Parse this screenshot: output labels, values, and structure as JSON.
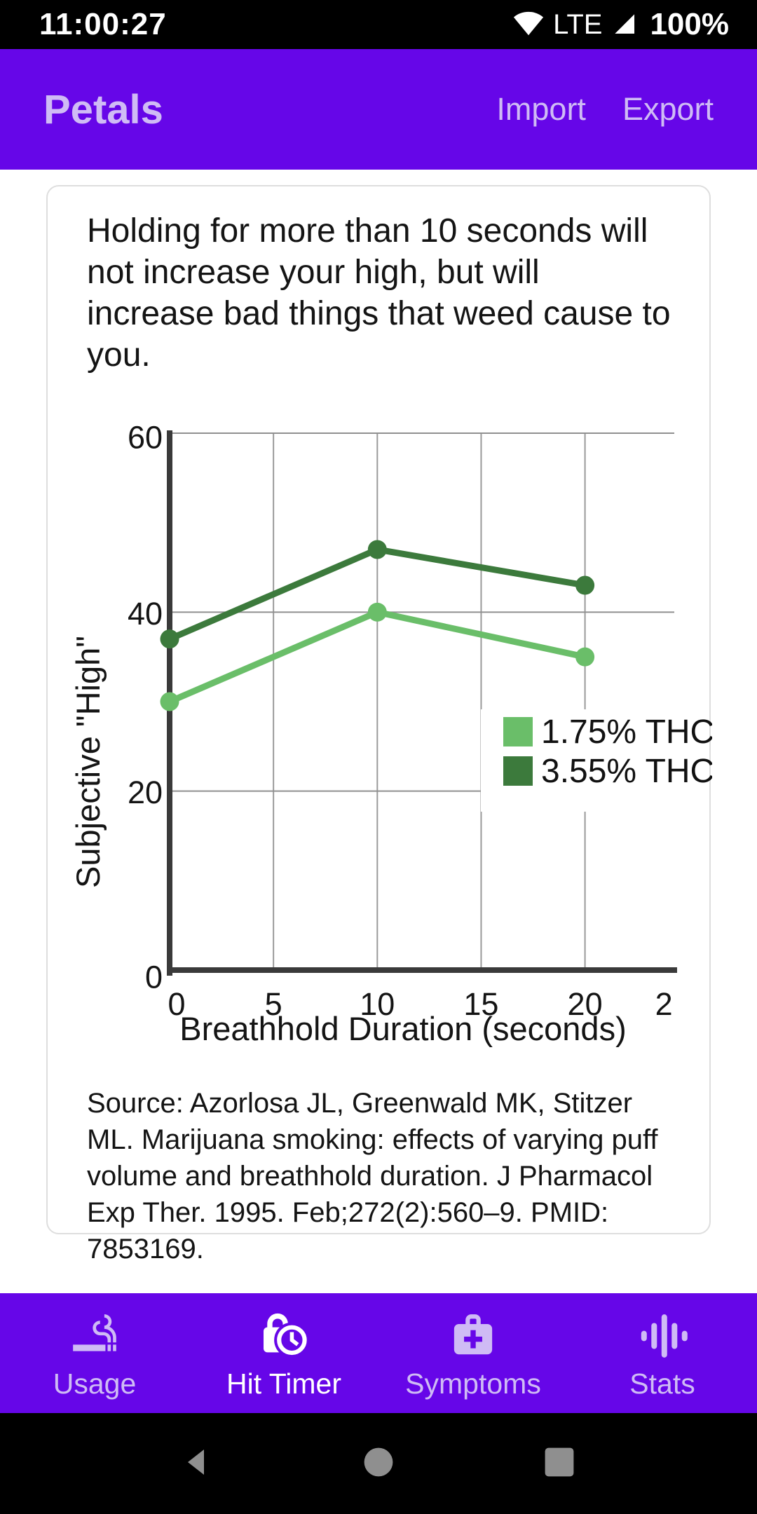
{
  "status_bar": {
    "time": "11:00:27",
    "network": "LTE",
    "battery": "100%"
  },
  "app_bar": {
    "title": "Petals",
    "import_label": "Import",
    "export_label": "Export"
  },
  "card": {
    "title": "Holding for more than 10 seconds will not increase your high, but will increase bad things that weed cause to you.",
    "source": "Source: Azorlosa JL, Greenwald MK, Stitzer ML. Marijuana smoking: effects of varying puff volume and breathhold duration. J Pharmacol Exp Ther. 1995. Feb;272(2):560–9. PMID: 7853169."
  },
  "chart_data": {
    "type": "line",
    "title": "",
    "xlabel": "Breathhold Duration (seconds)",
    "ylabel": "Subjective \"High\"",
    "x": [
      0,
      10,
      20
    ],
    "series": [
      {
        "name": "1.75% THC",
        "color": "#6ABE69",
        "values": [
          30,
          40,
          35
        ]
      },
      {
        "name": "3.55% THC",
        "color": "#3C7A3C",
        "values": [
          37,
          47,
          43
        ]
      }
    ],
    "xlim": [
      0,
      24.3
    ],
    "ylim": [
      0,
      60
    ],
    "grid": true,
    "x_gridlines": [
      5,
      10,
      15,
      20
    ],
    "y_gridlines": [
      20,
      40,
      60
    ],
    "x_tick_values": [
      0,
      5,
      10,
      15,
      20,
      23.8
    ],
    "x_tick_labels": [
      "0",
      "5",
      "10",
      "15",
      "20",
      "2"
    ],
    "y_tick_values": [
      0,
      20,
      40,
      60
    ],
    "y_tick_labels": [
      "0",
      "20",
      "40",
      "60"
    ],
    "legend_position": "inside-right-middle"
  },
  "bottom_nav": {
    "items": [
      {
        "label": "Usage",
        "icon": "smoking-icon",
        "active": false
      },
      {
        "label": "Hit Timer",
        "icon": "lock-clock-icon",
        "active": true
      },
      {
        "label": "Symptoms",
        "icon": "medical-bag-icon",
        "active": false
      },
      {
        "label": "Stats",
        "icon": "equalizer-icon",
        "active": false
      }
    ]
  },
  "android_nav": {
    "buttons": [
      "back",
      "home",
      "recents"
    ]
  },
  "colors": {
    "primary": "#6606E8",
    "lavender": "#CFBBF5",
    "active": "#FFFFFF",
    "series_light_green": "#6ABE69",
    "series_dark_green": "#3C7A3C",
    "status_bar_bg": "#000000",
    "card_border": "#DEDEDE"
  }
}
